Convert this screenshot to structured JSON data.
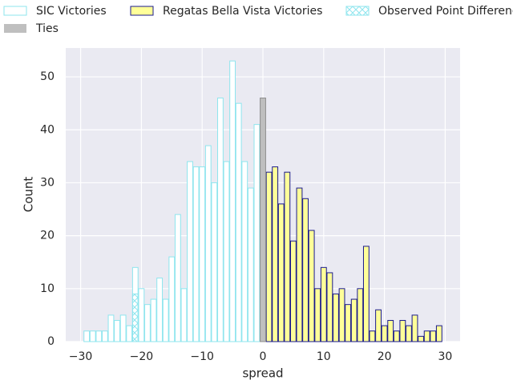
{
  "chart_data": {
    "type": "bar",
    "xlabel": "spread",
    "ylabel": "Count",
    "xlim": [
      -32.45,
      32.45
    ],
    "ylim": [
      0,
      55.45
    ],
    "xticks": [
      {
        "value": -30,
        "label": "−30"
      },
      {
        "value": -20,
        "label": "−20"
      },
      {
        "value": -10,
        "label": "−10"
      },
      0,
      10,
      20,
      30
    ],
    "yticks": [
      0,
      10,
      20,
      30,
      40,
      50
    ],
    "grid": true,
    "series": [
      {
        "name": "SIC Victories",
        "color": "#ffffff",
        "edgecolor": "#8ee5ee",
        "x": [
          -29,
          -28,
          -27,
          -26,
          -25,
          -24,
          -23,
          -22,
          -21,
          -20,
          -19,
          -18,
          -17,
          -16,
          -15,
          -14,
          -13,
          -12,
          -11,
          -10,
          -9,
          -8,
          -7,
          -6,
          -5,
          -4,
          -3,
          -2,
          -1
        ],
        "values": [
          2,
          2,
          2,
          2,
          5,
          4,
          5,
          3,
          14,
          10,
          7,
          8,
          12,
          8,
          16,
          24,
          10,
          34,
          33,
          33,
          37,
          30,
          46,
          34,
          53,
          45,
          34,
          29,
          41
        ]
      },
      {
        "name": "Regatas Bella Vista Victories",
        "color": "#ffff99",
        "edgecolor": "#1a1a8c",
        "x": [
          1,
          2,
          3,
          4,
          5,
          6,
          7,
          8,
          9,
          10,
          11,
          12,
          13,
          14,
          15,
          16,
          17,
          18,
          19,
          20,
          21,
          22,
          23,
          24,
          25,
          26,
          27,
          28,
          29
        ],
        "values": [
          32,
          33,
          26,
          32,
          19,
          29,
          27,
          21,
          10,
          14,
          13,
          9,
          10,
          7,
          8,
          10,
          18,
          2,
          6,
          3,
          4,
          2,
          4,
          3,
          5,
          1,
          2,
          2,
          3
        ]
      },
      {
        "name": "Observed Point Difference",
        "color": "hatch",
        "edgecolor": "#8ee5ee",
        "x": [
          -21
        ],
        "values": [
          9
        ]
      },
      {
        "name": "Ties",
        "color": "#bfbfbf",
        "edgecolor": "#8c8c8c",
        "x": [
          0
        ],
        "values": [
          46
        ]
      }
    ]
  }
}
